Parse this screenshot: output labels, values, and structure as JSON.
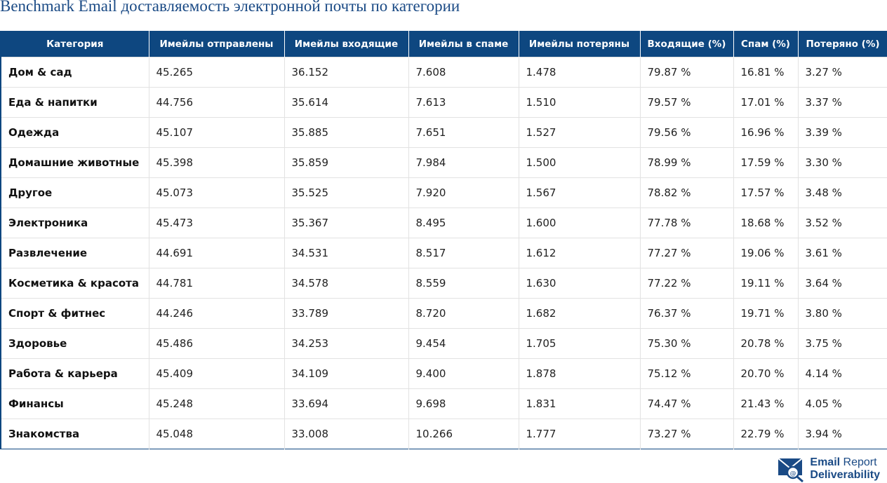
{
  "header": {
    "title": "Benchmark Email доставляемость электронной почты по категории"
  },
  "table": {
    "columns": [
      "Категория",
      "Имейлы отправлены",
      "Имейлы входящие",
      "Имейлы в спаме",
      "Имейлы потеряны",
      "Входящие (%)",
      "Спам (%)",
      "Потеряно (%)"
    ],
    "rows": [
      [
        "Дом & сад",
        "45.265",
        "36.152",
        "7.608",
        "1.478",
        "79.87 %",
        "16.81 %",
        "3.27 %"
      ],
      [
        "Еда & напитки",
        "44.756",
        "35.614",
        "7.613",
        "1.510",
        "79.57 %",
        "17.01 %",
        "3.37 %"
      ],
      [
        "Одежда",
        "45.107",
        "35.885",
        "7.651",
        "1.527",
        "79.56 %",
        "16.96 %",
        "3.39 %"
      ],
      [
        "Домашние животные",
        "45.398",
        "35.859",
        "7.984",
        "1.500",
        "78.99 %",
        "17.59 %",
        "3.30 %"
      ],
      [
        "Другое",
        "45.073",
        "35.525",
        "7.920",
        "1.567",
        "78.82 %",
        "17.57 %",
        "3.48 %"
      ],
      [
        "Электроника",
        "45.473",
        "35.367",
        "8.495",
        "1.600",
        "77.78 %",
        "18.68 %",
        "3.52 %"
      ],
      [
        "Развлечение",
        "44.691",
        "34.531",
        "8.517",
        "1.612",
        "77.27 %",
        "19.06 %",
        "3.61 %"
      ],
      [
        "Косметика & красота",
        "44.781",
        "34.578",
        "8.559",
        "1.630",
        "77.22 %",
        "19.11 %",
        "3.64 %"
      ],
      [
        "Спорт & фитнес",
        "44.246",
        "33.789",
        "8.720",
        "1.682",
        "76.37 %",
        "19.71 %",
        "3.80 %"
      ],
      [
        "Здоровье",
        "45.486",
        "34.253",
        "9.454",
        "1.705",
        "75.30 %",
        "20.78 %",
        "3.75 %"
      ],
      [
        "Работа & карьера",
        "45.409",
        "34.109",
        "9.400",
        "1.878",
        "75.12 %",
        "20.70 %",
        "4.14 %"
      ],
      [
        "Финансы",
        "45.248",
        "33.694",
        "9.698",
        "1.831",
        "74.47 %",
        "21.43 %",
        "4.05 %"
      ],
      [
        "Знакомства",
        "45.048",
        "33.008",
        "10.266",
        "1.777",
        "73.27 %",
        "22.79 %",
        "3.94 %"
      ]
    ]
  },
  "logo": {
    "line1a": "Email",
    "line1b": "Report",
    "line2": "Deliverability"
  }
}
